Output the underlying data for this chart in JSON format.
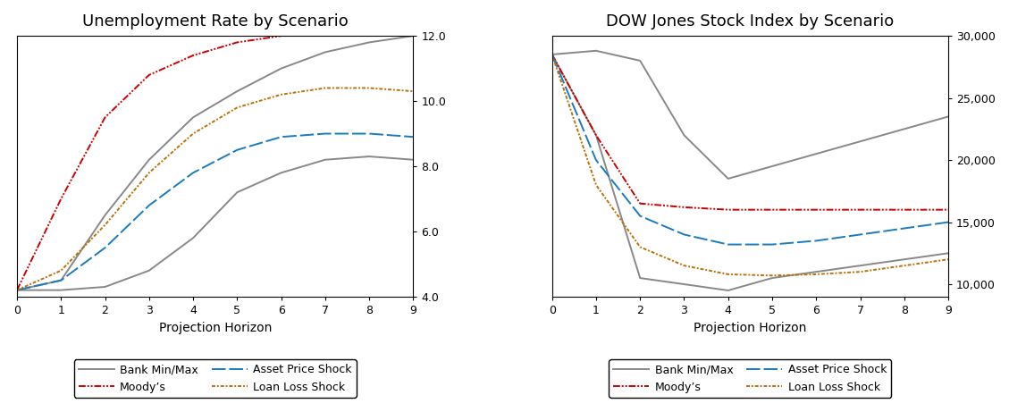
{
  "unemp_title": "Unemployment Rate by Scenario",
  "dow_title": "DOW Jones Stock Index by Scenario",
  "xlabel": "Projection Horizon",
  "x": [
    0,
    1,
    2,
    3,
    4,
    5,
    6,
    7,
    8,
    9
  ],
  "unemp_bank_max": [
    4.2,
    4.5,
    6.5,
    8.2,
    9.5,
    10.3,
    11.0,
    11.5,
    11.8,
    12.0
  ],
  "unemp_bank_min": [
    4.2,
    4.2,
    4.3,
    4.8,
    5.8,
    7.2,
    7.8,
    8.2,
    8.3,
    8.2
  ],
  "unemp_moodys": [
    4.2,
    7.0,
    9.5,
    10.8,
    11.4,
    11.8,
    12.0,
    12.1,
    12.1,
    12.0
  ],
  "unemp_asset": [
    4.2,
    4.5,
    5.5,
    6.8,
    7.8,
    8.5,
    8.9,
    9.0,
    9.0,
    8.9
  ],
  "unemp_loan": [
    4.2,
    4.8,
    6.2,
    7.8,
    9.0,
    9.8,
    10.2,
    10.4,
    10.4,
    10.3
  ],
  "dow_bank_max": [
    28500,
    28800,
    28000,
    22000,
    18500,
    19500,
    20500,
    21500,
    22500,
    23500
  ],
  "dow_bank_min": [
    28500,
    22000,
    10500,
    10000,
    9500,
    10500,
    11000,
    11500,
    12000,
    12500
  ],
  "dow_moodys": [
    28500,
    22000,
    16500,
    16200,
    16000,
    16000,
    16000,
    16000,
    16000,
    16000
  ],
  "dow_asset": [
    28500,
    20000,
    15500,
    14000,
    13200,
    13200,
    13500,
    14000,
    14500,
    15000
  ],
  "dow_loan": [
    28500,
    18000,
    13000,
    11500,
    10800,
    10700,
    10800,
    11000,
    11500,
    12000
  ],
  "unemp_ylim": [
    4.0,
    12.0
  ],
  "unemp_yticks": [
    4.0,
    6.0,
    8.0,
    10.0,
    12.0
  ],
  "dow_ylim": [
    9000,
    30000
  ],
  "dow_yticks": [
    10000,
    15000,
    20000,
    25000,
    30000
  ],
  "color_bank": "#888888",
  "color_moodys": "#cc0000",
  "color_asset": "#1a7abf",
  "color_loan": "#b8720a",
  "legend_labels": [
    "Bank Min/Max",
    "Moody’s",
    "Asset Price Shock",
    "Loan Loss Shock"
  ],
  "lw": 1.4,
  "title_fontsize": 13,
  "tick_labelsize": 9,
  "legend_fontsize": 9,
  "xlabel_fontsize": 10
}
